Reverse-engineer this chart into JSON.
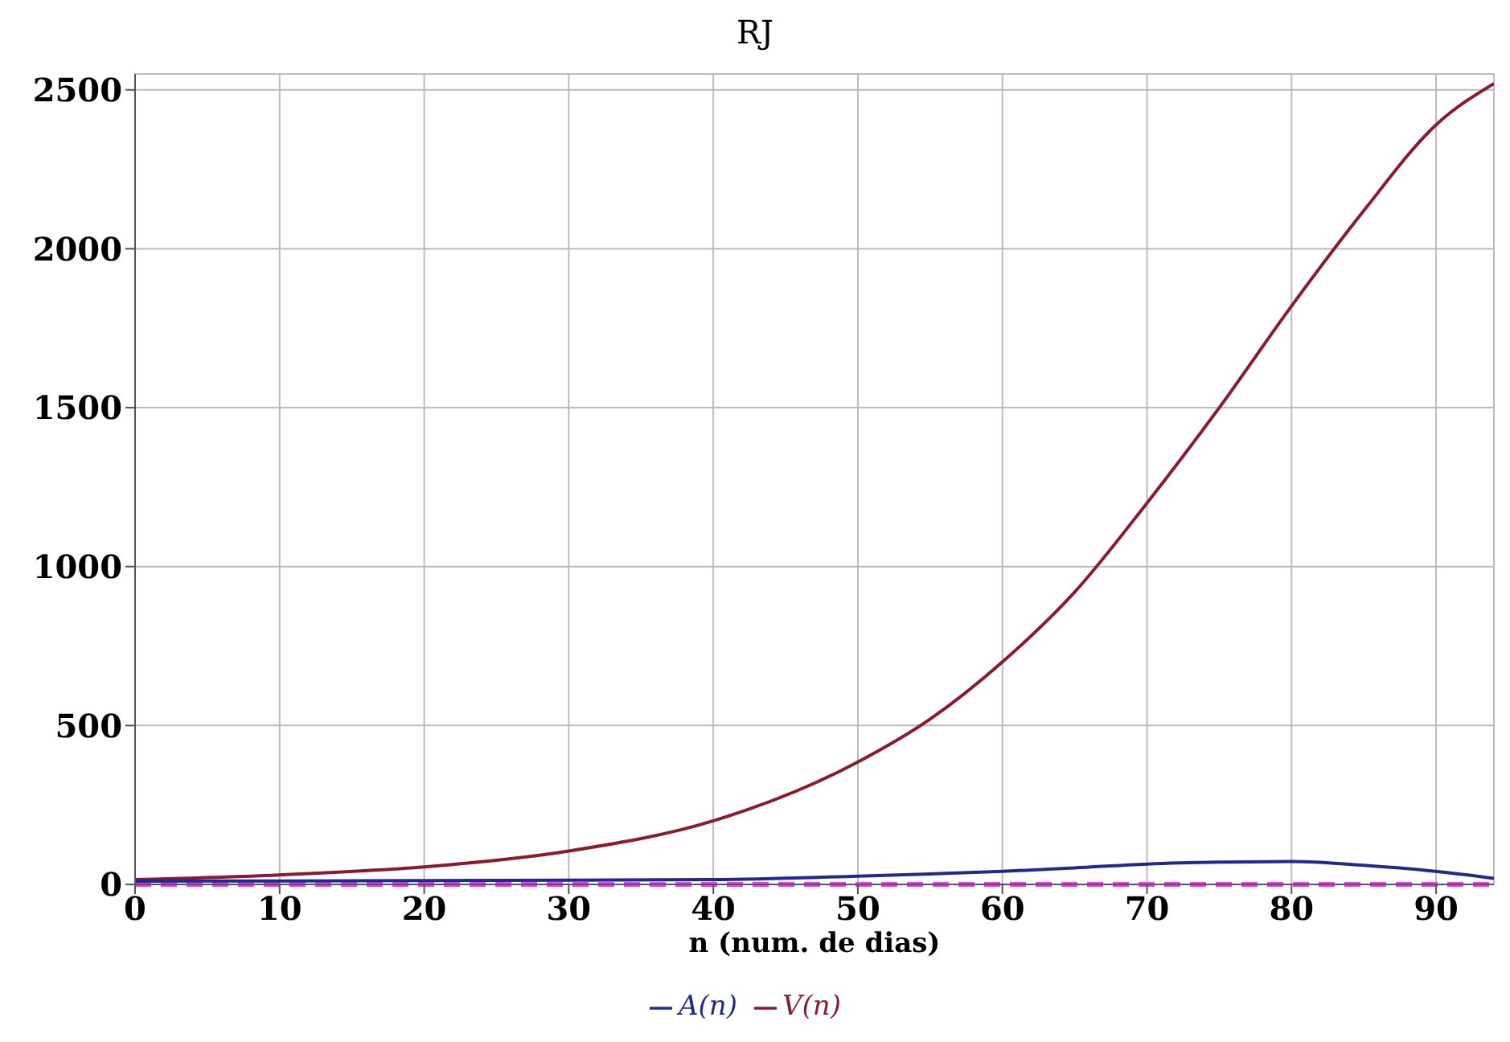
{
  "chart_data": {
    "type": "line",
    "title": "RJ",
    "xlabel": "n (num. de dias)",
    "x": [
      0,
      10,
      20,
      30,
      40,
      50,
      55,
      60,
      65,
      70,
      75,
      80,
      85,
      90,
      94
    ],
    "series": [
      {
        "name": "V(n)",
        "color": "#8b1a2b",
        "values": [
          15,
          30,
          55,
          105,
          200,
          385,
          520,
          700,
          920,
          1200,
          1500,
          1820,
          2120,
          2390,
          2520
        ]
      },
      {
        "name": "A(n)",
        "color": "#1f2a8c",
        "values": [
          10,
          11,
          12,
          13,
          15,
          26,
          33,
          41,
          52,
          64,
          70,
          72,
          60,
          41,
          19
        ]
      }
    ],
    "xlim": [
      0,
      94
    ],
    "xticks": [
      0,
      10,
      20,
      30,
      40,
      50,
      60,
      70,
      80,
      90
    ],
    "ylim": [
      0,
      2550
    ],
    "yticks": [
      0,
      500,
      1000,
      1500,
      2000,
      2500
    ],
    "ref_lines": [
      {
        "axis": "y",
        "value": 0,
        "color": "#ff33ff",
        "line_style": "dashed"
      }
    ],
    "grid": true,
    "legend": "bottom",
    "marker": "none",
    "line_style": "solid"
  }
}
